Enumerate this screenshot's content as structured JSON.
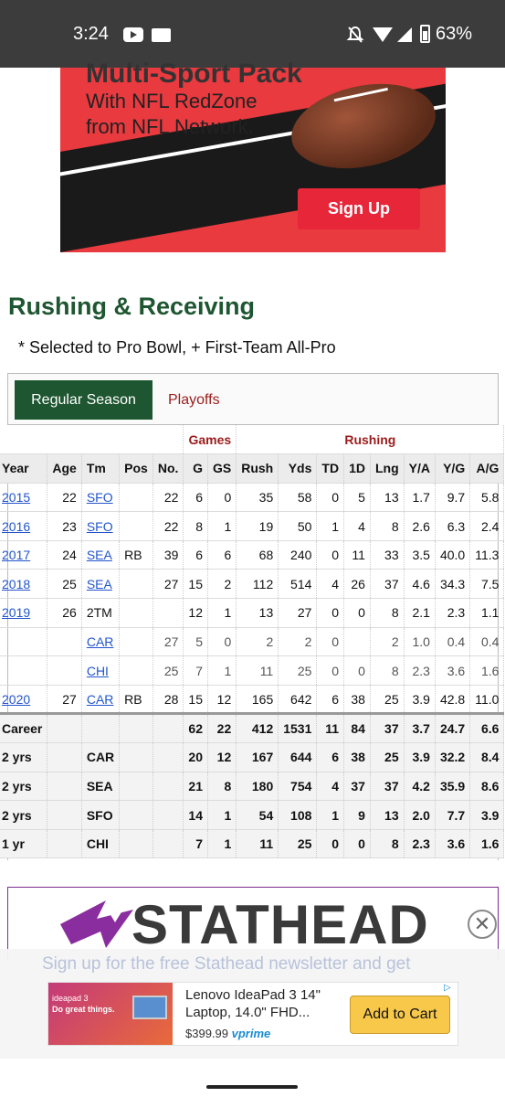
{
  "status": {
    "time": "3:24",
    "battery": "63%"
  },
  "ad_top": {
    "headline": "Multi-Sport Pack",
    "line1": "With NFL RedZone",
    "line2": "from NFL Network.",
    "button": "Sign Up"
  },
  "section": {
    "title": "Rushing & Receiving",
    "note": "* Selected to Pro Bowl, + First-Team All-Pro"
  },
  "tabs": {
    "regular": "Regular Season",
    "playoffs": "Playoffs"
  },
  "table": {
    "groups": {
      "games": "Games",
      "rushing": "Rushing"
    },
    "headers": [
      "Year",
      "Age",
      "Tm",
      "Pos",
      "No.",
      "G",
      "GS",
      "Rush",
      "Yds",
      "TD",
      "1D",
      "Lng",
      "Y/A",
      "Y/G",
      "A/G"
    ],
    "rows": [
      {
        "year": "2015",
        "age": "22",
        "tm": "SFO",
        "pos": "",
        "no": "22",
        "g": "6",
        "gs": "0",
        "rush": "35",
        "yds": "58",
        "td": "0",
        "fd": "5",
        "lng": "13",
        "ya": "1.7",
        "yg": "9.7",
        "ag": "5.8"
      },
      {
        "year": "2016",
        "age": "23",
        "tm": "SFO",
        "pos": "",
        "no": "22",
        "g": "8",
        "gs": "1",
        "rush": "19",
        "yds": "50",
        "td": "1",
        "fd": "4",
        "lng": "8",
        "ya": "2.6",
        "yg": "6.3",
        "ag": "2.4"
      },
      {
        "year": "2017",
        "age": "24",
        "tm": "SEA",
        "pos": "RB",
        "no": "39",
        "g": "6",
        "gs": "6",
        "rush": "68",
        "yds": "240",
        "td": "0",
        "fd": "11",
        "lng": "33",
        "ya": "3.5",
        "yg": "40.0",
        "ag": "11.3"
      },
      {
        "year": "2018",
        "age": "25",
        "tm": "SEA",
        "pos": "",
        "no": "27",
        "g": "15",
        "gs": "2",
        "rush": "112",
        "yds": "514",
        "td": "4",
        "fd": "26",
        "lng": "37",
        "ya": "4.6",
        "yg": "34.3",
        "ag": "7.5"
      },
      {
        "year": "2019",
        "age": "26",
        "tm": "2TM",
        "pos": "",
        "no": "",
        "g": "12",
        "gs": "1",
        "rush": "13",
        "yds": "27",
        "td": "0",
        "fd": "0",
        "lng": "8",
        "ya": "2.1",
        "yg": "2.3",
        "ag": "1.1"
      },
      {
        "year": "",
        "age": "",
        "tm": "CAR",
        "pos": "",
        "no": "27",
        "g": "5",
        "gs": "0",
        "rush": "2",
        "yds": "2",
        "td": "0",
        "fd": "",
        "lng": "2",
        "ya": "1.0",
        "yg": "0.4",
        "ag": "0.4"
      },
      {
        "year": "",
        "age": "",
        "tm": "CHI",
        "pos": "",
        "no": "25",
        "g": "7",
        "gs": "1",
        "rush": "11",
        "yds": "25",
        "td": "0",
        "fd": "0",
        "lng": "8",
        "ya": "2.3",
        "yg": "3.6",
        "ag": "1.6"
      },
      {
        "year": "2020",
        "age": "27",
        "tm": "CAR",
        "pos": "RB",
        "no": "28",
        "g": "15",
        "gs": "12",
        "rush": "165",
        "yds": "642",
        "td": "6",
        "fd": "38",
        "lng": "25",
        "ya": "3.9",
        "yg": "42.8",
        "ag": "11.0"
      }
    ],
    "totals": [
      {
        "year": "Career",
        "tm": "",
        "g": "62",
        "gs": "22",
        "rush": "412",
        "yds": "1531",
        "td": "11",
        "fd": "84",
        "lng": "37",
        "ya": "3.7",
        "yg": "24.7",
        "ag": "6.6"
      },
      {
        "year": "2 yrs",
        "tm": "CAR",
        "g": "20",
        "gs": "12",
        "rush": "167",
        "yds": "644",
        "td": "6",
        "fd": "38",
        "lng": "25",
        "ya": "3.9",
        "yg": "32.2",
        "ag": "8.4"
      },
      {
        "year": "2 yrs",
        "tm": "SEA",
        "g": "21",
        "gs": "8",
        "rush": "180",
        "yds": "754",
        "td": "4",
        "fd": "37",
        "lng": "37",
        "ya": "4.2",
        "yg": "35.9",
        "ag": "8.6"
      },
      {
        "year": "2 yrs",
        "tm": "SFO",
        "g": "14",
        "gs": "1",
        "rush": "54",
        "yds": "108",
        "td": "1",
        "fd": "9",
        "lng": "13",
        "ya": "2.0",
        "yg": "7.7",
        "ag": "3.9"
      },
      {
        "year": "1 yr",
        "tm": "CHI",
        "g": "7",
        "gs": "1",
        "rush": "11",
        "yds": "25",
        "td": "0",
        "fd": "0",
        "lng": "8",
        "ya": "2.3",
        "yg": "3.6",
        "ag": "1.6"
      }
    ]
  },
  "stathead": {
    "brand": "STATHEAD",
    "newsletter": "Sign up for the free Stathead newsletter and get"
  },
  "ad_bottom": {
    "img_line1": "ideapad 3",
    "img_line2": "Do great things.",
    "title_line1": "Lenovo IdeaPad 3 14\"",
    "title_line2": "Laptop, 14.0\" FHD...",
    "price": "$399.99",
    "prime": "vprime",
    "button": "Add to Cart"
  }
}
